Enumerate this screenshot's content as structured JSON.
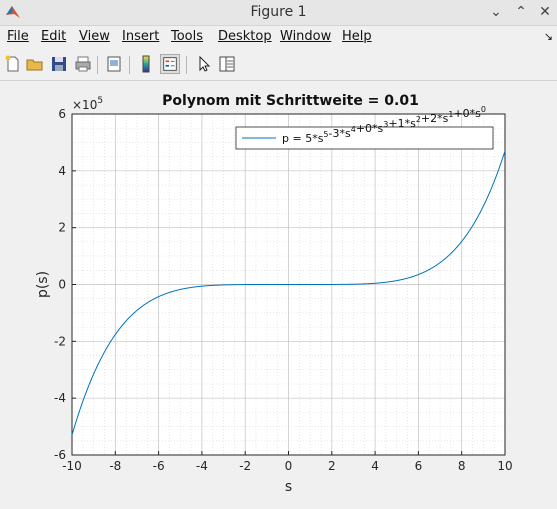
{
  "window": {
    "title": "Figure 1"
  },
  "menu": [
    "File",
    "Edit",
    "View",
    "Insert",
    "Tools",
    "Desktop",
    "Window",
    "Help"
  ],
  "icons": [
    "new-file-icon",
    "open-folder-icon",
    "save-icon",
    "print-icon",
    "print-preview-icon",
    "colorbar-icon",
    "legend-icon",
    "pointer-icon",
    "property-editor-icon"
  ],
  "chart_data": {
    "type": "line",
    "title": "Polynom mit Schrittweite = 0.01",
    "xlabel": "s",
    "ylabel": "p(s)",
    "xlim": [
      -10,
      10
    ],
    "ylim": [
      -600000,
      600000
    ],
    "y_exponent_label": "×10",
    "y_exponent": "5",
    "xticks": [
      -10,
      -8,
      -6,
      -4,
      -2,
      0,
      2,
      4,
      6,
      8,
      10
    ],
    "yticks": [
      -6,
      -4,
      -2,
      0,
      2,
      4,
      6
    ],
    "grid": "major-and-minor",
    "legend_position": "top-right",
    "coefficients": [
      5,
      -3,
      0,
      1,
      2,
      0
    ],
    "step": 0.01,
    "series": [
      {
        "name": "p = 5*s^5-3*s^4+0*s^3+1*s^2+2*s^1+0*s^0",
        "color": "#0072bd"
      }
    ],
    "legend_parts": [
      [
        "p = 5*s",
        "5"
      ],
      [
        "-3*s",
        "4"
      ],
      [
        "+0*s",
        "3"
      ],
      [
        "+1*s",
        "2"
      ],
      [
        "+2*s",
        "1"
      ],
      [
        "+0*s",
        "0"
      ]
    ]
  }
}
